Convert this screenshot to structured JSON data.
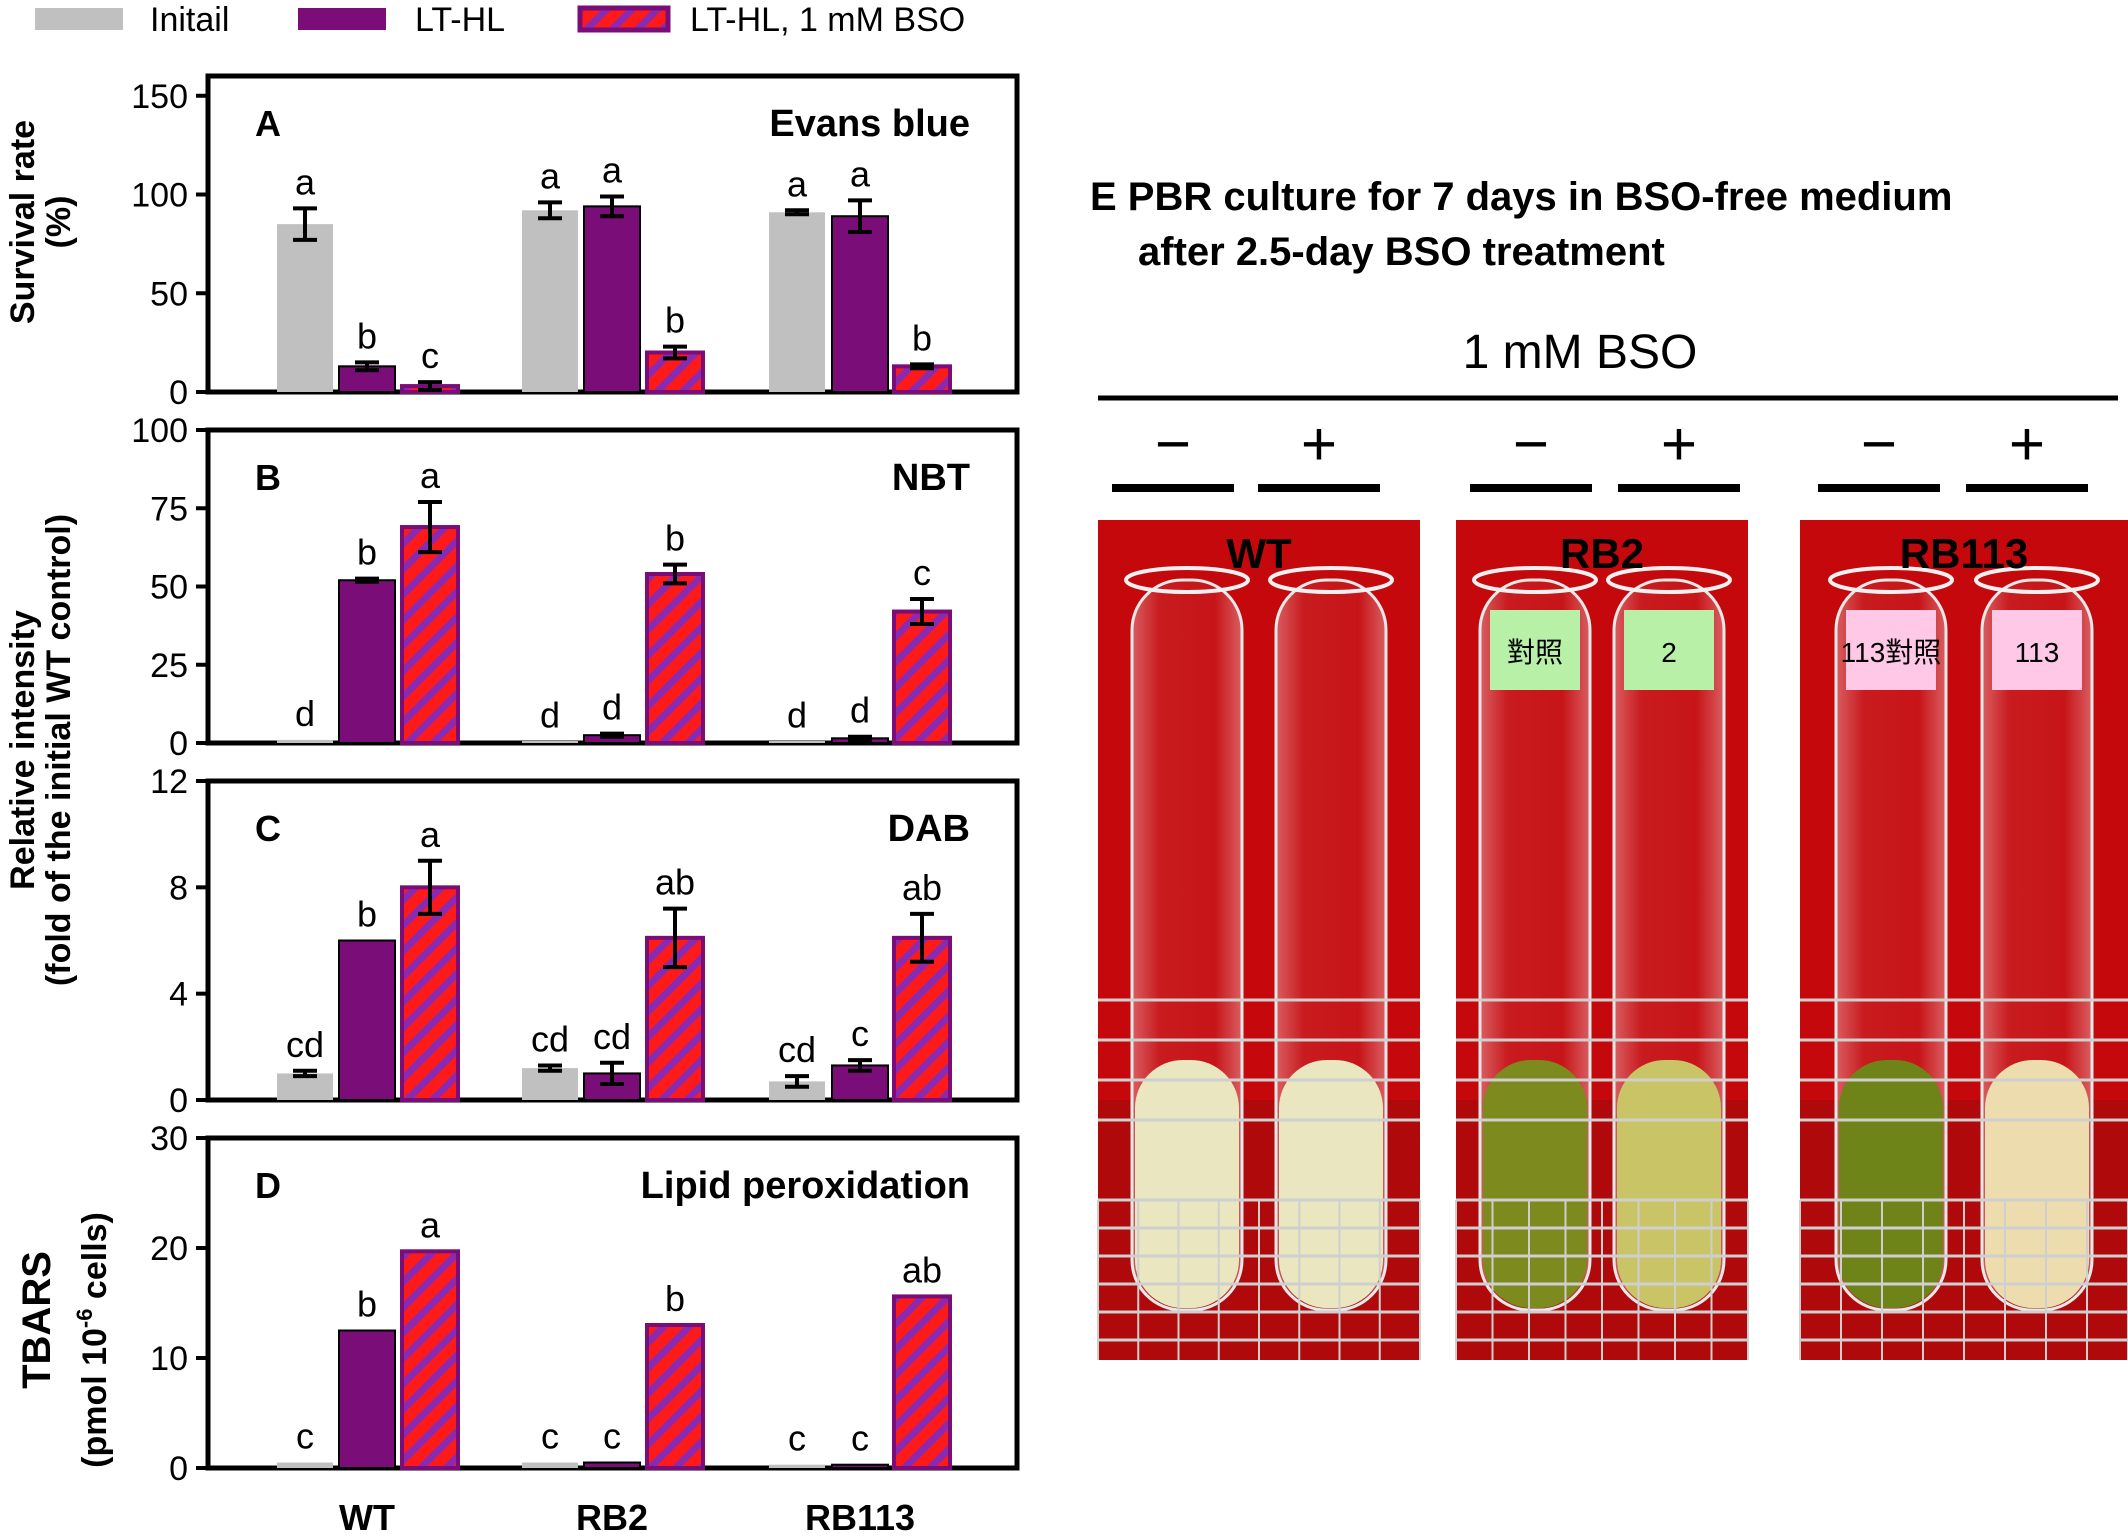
{
  "legend": {
    "items": [
      {
        "label": "Initail",
        "style": "gray"
      },
      {
        "label": "LT-HL",
        "style": "purple"
      },
      {
        "label": "LT-HL, 1 mM BSO",
        "style": "hatch"
      }
    ]
  },
  "colors": {
    "initial": "#c0c0c0",
    "lthl": "#7a0d78",
    "bso_fill": "#ff1a1a",
    "bso_stripe": "#8a2ab0",
    "bar_outline": "#000000"
  },
  "ylabels": {
    "a_line1": "Survival rate",
    "a_line2": "(%)",
    "bc_line1": "Relative intensity",
    "bc_line2": "(fold of the initial WT control)",
    "d_line1": "TBARS",
    "d_line2_pre": "(pmol 10",
    "d_line2_sup": "-6",
    "d_line2_post": " cells)"
  },
  "chart_data": [
    {
      "type": "bar",
      "panel": "A",
      "label": "Evans blue",
      "categories": [
        "WT",
        "RB2",
        "RB113"
      ],
      "ylim": [
        0,
        160
      ],
      "yticks": [
        0,
        50,
        100,
        150
      ],
      "series": [
        {
          "name": "Initail",
          "values": [
            85,
            92,
            91
          ],
          "errors": [
            8,
            4,
            1
          ],
          "letters": [
            "a",
            "a",
            "a"
          ]
        },
        {
          "name": "LT-HL",
          "values": [
            13,
            94,
            89
          ],
          "errors": [
            2,
            5,
            8
          ],
          "letters": [
            "b",
            "a",
            "a"
          ]
        },
        {
          "name": "LT-HL, 1 mM BSO",
          "values": [
            3,
            20,
            13
          ],
          "errors": [
            2,
            3,
            1
          ],
          "letters": [
            "c",
            "b",
            "b"
          ]
        }
      ]
    },
    {
      "type": "bar",
      "panel": "B",
      "label": "NBT",
      "categories": [
        "WT",
        "RB2",
        "RB113"
      ],
      "ylim": [
        0,
        100
      ],
      "yticks": [
        0,
        25,
        50,
        75,
        100
      ],
      "series": [
        {
          "name": "Initail",
          "values": [
            1,
            0.5,
            0.5
          ],
          "errors": [
            0,
            0,
            0
          ],
          "letters": [
            "d",
            "d",
            "d"
          ]
        },
        {
          "name": "LT-HL",
          "values": [
            52,
            2.5,
            1.5
          ],
          "errors": [
            0.5,
            0.5,
            0.5
          ],
          "letters": [
            "b",
            "d",
            "d"
          ]
        },
        {
          "name": "LT-HL, 1 mM BSO",
          "values": [
            69,
            54,
            42
          ],
          "errors": [
            8,
            3,
            4
          ],
          "letters": [
            "a",
            "b",
            "c"
          ]
        }
      ]
    },
    {
      "type": "bar",
      "panel": "C",
      "label": "DAB",
      "categories": [
        "WT",
        "RB2",
        "RB113"
      ],
      "ylim": [
        0,
        12
      ],
      "yticks": [
        0,
        4,
        8,
        12
      ],
      "series": [
        {
          "name": "Initail",
          "values": [
            1,
            1.2,
            0.7
          ],
          "errors": [
            0.1,
            0.1,
            0.2
          ],
          "letters": [
            "cd",
            "cd",
            "cd"
          ]
        },
        {
          "name": "LT-HL",
          "values": [
            6,
            1,
            1.3
          ],
          "errors": [
            0,
            0.4,
            0.2
          ],
          "letters": [
            "b",
            "cd",
            "c"
          ]
        },
        {
          "name": "LT-HL, 1 mM BSO",
          "values": [
            8,
            6.1,
            6.1
          ],
          "errors": [
            1,
            1.1,
            0.9
          ],
          "letters": [
            "a",
            "ab",
            "ab"
          ]
        }
      ]
    },
    {
      "type": "bar",
      "panel": "D",
      "label": "Lipid peroxidation",
      "categories": [
        "WT",
        "RB2",
        "RB113"
      ],
      "ylim": [
        0,
        30
      ],
      "yticks": [
        0,
        10,
        20,
        30
      ],
      "series": [
        {
          "name": "Initail",
          "values": [
            0.5,
            0.5,
            0.3
          ],
          "errors": [
            0,
            0,
            0
          ],
          "letters": [
            "c",
            "c",
            "c"
          ]
        },
        {
          "name": "LT-HL",
          "values": [
            12.5,
            0.5,
            0.3
          ],
          "errors": [
            0,
            0,
            0
          ],
          "letters": [
            "b",
            "c",
            "c"
          ]
        },
        {
          "name": "LT-HL, 1 mM BSO",
          "values": [
            19.7,
            13,
            15.6
          ],
          "errors": [
            0,
            0,
            0
          ],
          "letters": [
            "a",
            "b",
            "ab"
          ]
        }
      ]
    }
  ],
  "photo": {
    "title_line1": "E  PBR culture for 7 days in BSO-free medium",
    "title_line2": "after 2.5-day BSO treatment",
    "treatment_label": "1 mM BSO",
    "signs": [
      "−",
      "+",
      "−",
      "+",
      "−",
      "+"
    ],
    "groups": [
      {
        "label": "WT",
        "tags": [],
        "culture_colors": [
          "#e9e6c0",
          "#e9e6c0"
        ]
      },
      {
        "label": "RB2",
        "tags": [
          "對照",
          "2"
        ],
        "culture_colors": [
          "#7d8a1e",
          "#c9c566"
        ]
      },
      {
        "label": "RB113",
        "tags": [
          "113對照",
          "113"
        ],
        "culture_colors": [
          "#6f8418",
          "#ecdcae"
        ]
      }
    ]
  }
}
